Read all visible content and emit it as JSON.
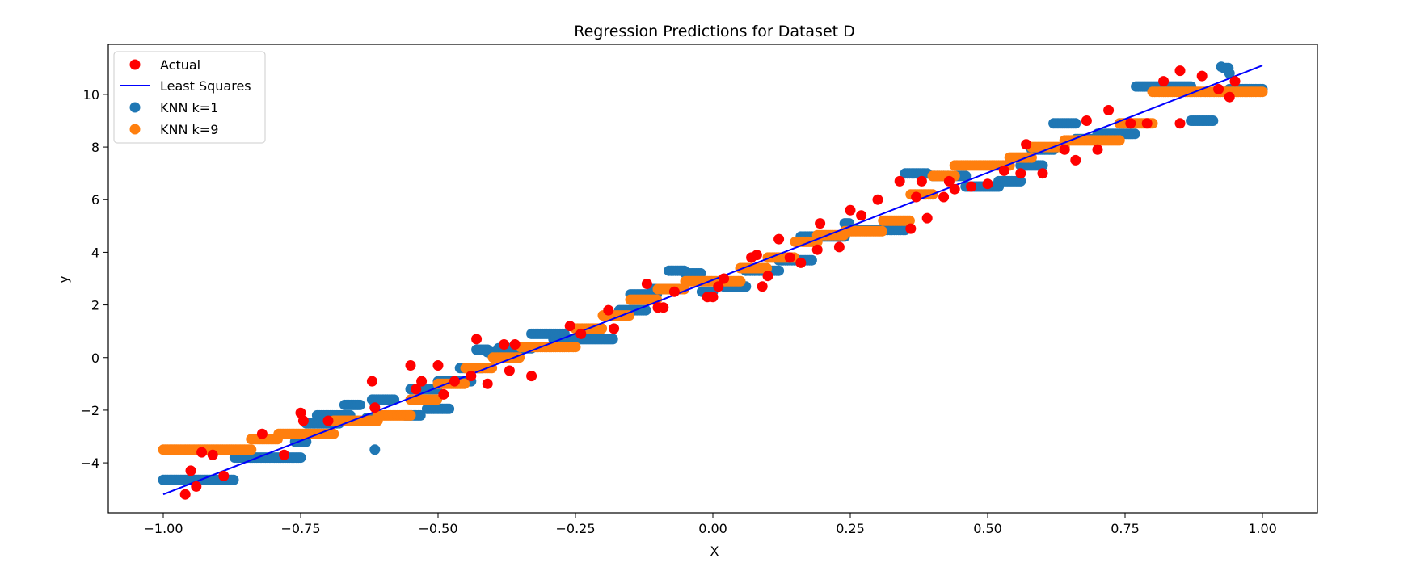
{
  "chart_data": {
    "type": "scatter",
    "title": "Regression Predictions for Dataset D",
    "xlabel": "X",
    "ylabel": "y",
    "xlim": [
      -1.1,
      1.1
    ],
    "ylim": [
      -5.9,
      11.9
    ],
    "grid": false,
    "legend_position": "upper left",
    "xticks": [
      -1.0,
      -0.75,
      -0.5,
      -0.25,
      0.0,
      0.25,
      0.5,
      0.75,
      1.0
    ],
    "xtick_labels": [
      "−1.00",
      "−0.75",
      "−0.50",
      "−0.25",
      "0.00",
      "0.25",
      "0.50",
      "0.75",
      "1.00"
    ],
    "yticks": [
      -4,
      -2,
      0,
      2,
      4,
      6,
      8,
      10
    ],
    "ytick_labels": [
      "−4",
      "−2",
      "0",
      "2",
      "4",
      "6",
      "8",
      "10"
    ],
    "series": [
      {
        "name": "Actual",
        "kind": "scatter",
        "color": "#ff0000",
        "points": [
          [
            -0.96,
            -5.2
          ],
          [
            -0.95,
            -4.3
          ],
          [
            -0.94,
            -4.9
          ],
          [
            -0.93,
            -3.6
          ],
          [
            -0.91,
            -3.7
          ],
          [
            -0.89,
            -4.5
          ],
          [
            -0.82,
            -2.9
          ],
          [
            -0.78,
            -3.7
          ],
          [
            -0.75,
            -2.1
          ],
          [
            -0.745,
            -2.4
          ],
          [
            -0.7,
            -2.4
          ],
          [
            -0.62,
            -0.9
          ],
          [
            -0.615,
            -1.9
          ],
          [
            -0.55,
            -0.3
          ],
          [
            -0.54,
            -1.2
          ],
          [
            -0.53,
            -0.9
          ],
          [
            -0.5,
            -0.3
          ],
          [
            -0.49,
            -1.4
          ],
          [
            -0.47,
            -0.9
          ],
          [
            -0.44,
            -0.7
          ],
          [
            -0.43,
            0.7
          ],
          [
            -0.41,
            -1.0
          ],
          [
            -0.38,
            0.5
          ],
          [
            -0.37,
            -0.5
          ],
          [
            -0.36,
            0.5
          ],
          [
            -0.33,
            -0.7
          ],
          [
            -0.26,
            1.2
          ],
          [
            -0.24,
            0.9
          ],
          [
            -0.19,
            1.8
          ],
          [
            -0.18,
            1.1
          ],
          [
            -0.12,
            2.8
          ],
          [
            -0.1,
            1.9
          ],
          [
            -0.09,
            1.9
          ],
          [
            -0.07,
            2.5
          ],
          [
            -0.01,
            2.3
          ],
          [
            0.0,
            2.3
          ],
          [
            0.01,
            2.7
          ],
          [
            0.02,
            3.0
          ],
          [
            0.07,
            3.8
          ],
          [
            0.08,
            3.9
          ],
          [
            0.09,
            2.7
          ],
          [
            0.1,
            3.1
          ],
          [
            0.12,
            4.5
          ],
          [
            0.14,
            3.8
          ],
          [
            0.16,
            3.6
          ],
          [
            0.19,
            4.1
          ],
          [
            0.195,
            5.1
          ],
          [
            0.23,
            4.2
          ],
          [
            0.25,
            5.6
          ],
          [
            0.27,
            5.4
          ],
          [
            0.3,
            6.0
          ],
          [
            0.34,
            6.7
          ],
          [
            0.36,
            4.9
          ],
          [
            0.37,
            6.1
          ],
          [
            0.38,
            6.7
          ],
          [
            0.39,
            5.3
          ],
          [
            0.42,
            6.1
          ],
          [
            0.43,
            6.7
          ],
          [
            0.44,
            6.4
          ],
          [
            0.47,
            6.5
          ],
          [
            0.5,
            6.6
          ],
          [
            0.53,
            7.1
          ],
          [
            0.56,
            7.0
          ],
          [
            0.57,
            8.1
          ],
          [
            0.6,
            7.0
          ],
          [
            0.64,
            7.9
          ],
          [
            0.66,
            7.5
          ],
          [
            0.68,
            9.0
          ],
          [
            0.7,
            7.9
          ],
          [
            0.72,
            9.4
          ],
          [
            0.76,
            8.9
          ],
          [
            0.79,
            8.9
          ],
          [
            0.82,
            10.5
          ],
          [
            0.85,
            8.9
          ],
          [
            0.85,
            10.9
          ],
          [
            0.89,
            10.7
          ],
          [
            0.92,
            10.2
          ],
          [
            0.94,
            9.9
          ],
          [
            0.95,
            10.5
          ]
        ]
      },
      {
        "name": "Least Squares",
        "kind": "line",
        "color": "#0000ff",
        "points": [
          [
            -1.0,
            -5.2
          ],
          [
            1.0,
            11.1
          ]
        ]
      },
      {
        "name": "KNN k=1",
        "kind": "step-scatter",
        "color": "#1f77b4",
        "segments": [
          [
            -1.0,
            -0.87,
            -4.65
          ],
          [
            -0.87,
            -0.75,
            -3.8
          ],
          [
            -0.76,
            -0.74,
            -3.2
          ],
          [
            -0.74,
            -0.68,
            -2.5
          ],
          [
            -0.72,
            -0.66,
            -2.2
          ],
          [
            -0.67,
            -0.64,
            -1.8
          ],
          [
            -0.63,
            -0.61,
            -2.3
          ],
          [
            -0.62,
            -0.58,
            -1.6
          ],
          [
            -0.56,
            -0.53,
            -2.2
          ],
          [
            -0.55,
            -0.5,
            -1.2
          ],
          [
            -0.52,
            -0.48,
            -1.95
          ],
          [
            -0.5,
            -0.44,
            -0.9
          ],
          [
            -0.46,
            -0.42,
            -0.4
          ],
          [
            -0.43,
            -0.41,
            0.3
          ],
          [
            -0.41,
            -0.37,
            0.2
          ],
          [
            -0.39,
            -0.33,
            0.35
          ],
          [
            -0.33,
            -0.27,
            0.9
          ],
          [
            -0.29,
            -0.18,
            0.7
          ],
          [
            -0.17,
            -0.12,
            1.8
          ],
          [
            -0.15,
            -0.1,
            2.4
          ],
          [
            -0.11,
            -0.06,
            2.6
          ],
          [
            -0.08,
            -0.05,
            3.3
          ],
          [
            -0.05,
            -0.02,
            3.2
          ],
          [
            -0.02,
            0.0,
            2.5
          ],
          [
            0.02,
            0.06,
            2.7
          ],
          [
            0.06,
            0.12,
            3.3
          ],
          [
            0.12,
            0.18,
            3.7
          ],
          [
            0.16,
            0.24,
            4.6
          ],
          [
            0.24,
            0.25,
            5.1
          ],
          [
            0.25,
            0.35,
            4.85
          ],
          [
            0.35,
            0.39,
            7.0
          ],
          [
            0.4,
            0.46,
            6.9
          ],
          [
            0.46,
            0.52,
            6.5
          ],
          [
            0.52,
            0.56,
            6.7
          ],
          [
            0.56,
            0.6,
            7.3
          ],
          [
            0.58,
            0.62,
            7.9
          ],
          [
            0.62,
            0.66,
            8.9
          ],
          [
            0.66,
            0.7,
            8.3
          ],
          [
            0.7,
            0.77,
            8.5
          ],
          [
            0.77,
            0.87,
            10.3
          ],
          [
            0.87,
            0.91,
            9.0
          ],
          [
            0.93,
            0.94,
            11.0
          ],
          [
            0.94,
            1.0,
            10.2
          ]
        ],
        "points": [
          [
            -0.615,
            -3.5
          ],
          [
            0.925,
            11.05
          ],
          [
            0.94,
            10.8
          ]
        ]
      },
      {
        "name": "KNN k=9",
        "kind": "step-scatter",
        "color": "#ff7f0e",
        "segments": [
          [
            -1.0,
            -0.84,
            -3.5
          ],
          [
            -0.84,
            -0.79,
            -3.1
          ],
          [
            -0.79,
            -0.69,
            -2.9
          ],
          [
            -0.69,
            -0.61,
            -2.4
          ],
          [
            -0.61,
            -0.55,
            -2.2
          ],
          [
            -0.55,
            -0.5,
            -1.6
          ],
          [
            -0.5,
            -0.45,
            -1.0
          ],
          [
            -0.45,
            -0.4,
            -0.4
          ],
          [
            -0.4,
            -0.35,
            0.0
          ],
          [
            -0.35,
            -0.25,
            0.4
          ],
          [
            -0.25,
            -0.2,
            1.1
          ],
          [
            -0.2,
            -0.15,
            1.6
          ],
          [
            -0.15,
            -0.1,
            2.2
          ],
          [
            -0.1,
            -0.05,
            2.6
          ],
          [
            -0.05,
            0.05,
            2.9
          ],
          [
            0.05,
            0.1,
            3.4
          ],
          [
            0.1,
            0.15,
            3.8
          ],
          [
            0.15,
            0.19,
            4.4
          ],
          [
            0.19,
            0.24,
            4.65
          ],
          [
            0.24,
            0.31,
            4.8
          ],
          [
            0.31,
            0.36,
            5.2
          ],
          [
            0.36,
            0.4,
            6.2
          ],
          [
            0.4,
            0.44,
            6.9
          ],
          [
            0.44,
            0.54,
            7.3
          ],
          [
            0.54,
            0.58,
            7.6
          ],
          [
            0.58,
            0.64,
            8.0
          ],
          [
            0.64,
            0.74,
            8.25
          ],
          [
            0.74,
            0.8,
            8.9
          ],
          [
            0.8,
            1.0,
            10.1
          ]
        ],
        "points": []
      }
    ]
  }
}
